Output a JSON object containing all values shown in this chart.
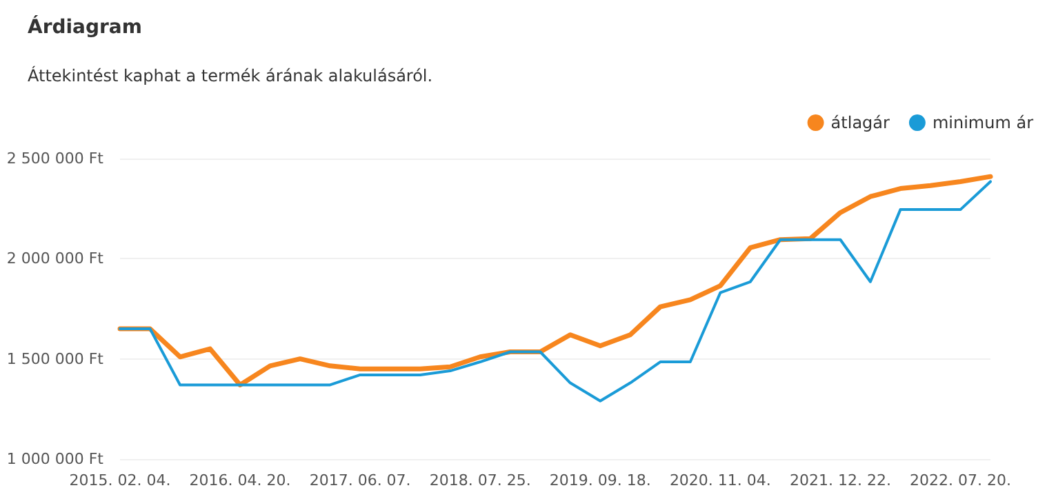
{
  "chart_data": {
    "type": "line",
    "title": "Árdiagram",
    "subtitle": "Áttekintést kaphat a termék árának alakulásáról.",
    "categories": [
      "2015. 02. 04.",
      null,
      null,
      null,
      "2016. 04. 20.",
      null,
      null,
      null,
      "2017. 06. 07.",
      null,
      null,
      null,
      "2018. 07. 25.",
      null,
      null,
      null,
      "2019. 09. 18.",
      null,
      null,
      null,
      "2020. 11. 04.",
      null,
      null,
      null,
      "2021. 12. 22.",
      null,
      null,
      null,
      "2022. 07. 20.",
      null
    ],
    "series": [
      {
        "name": "átlagár",
        "color": "#f7861e",
        "values": [
          1650000,
          1650000,
          1510000,
          1550000,
          1370000,
          1465000,
          1500000,
          1465000,
          1450000,
          1450000,
          1450000,
          1460000,
          1510000,
          1535000,
          1535000,
          1620000,
          1565000,
          1620000,
          1760000,
          1795000,
          1865000,
          2055000,
          2095000,
          2100000,
          2230000,
          2310000,
          2350000,
          2365000,
          2385000,
          2410000
        ]
      },
      {
        "name": "minimum ár",
        "color": "#1a9bd7",
        "values": [
          1650000,
          1650000,
          1370000,
          1370000,
          1370000,
          1370000,
          1370000,
          1370000,
          1420000,
          1420000,
          1420000,
          1440000,
          1485000,
          1535000,
          1535000,
          1380000,
          1290000,
          1380000,
          1485000,
          1485000,
          1830000,
          1885000,
          2095000,
          2095000,
          2095000,
          1885000,
          2245000,
          2245000,
          2245000,
          2385000
        ]
      }
    ],
    "ylim": [
      1000000,
      2500000
    ],
    "yticks": [
      {
        "value": 1000000,
        "label": "1 000 000 Ft"
      },
      {
        "value": 1500000,
        "label": "1 500 000 Ft"
      },
      {
        "value": 2000000,
        "label": "2 000 000 Ft"
      },
      {
        "value": 2500000,
        "label": "2 500 000 Ft"
      }
    ],
    "grid": "y",
    "legend": "top right",
    "marker": "none",
    "line_style": "solid"
  }
}
